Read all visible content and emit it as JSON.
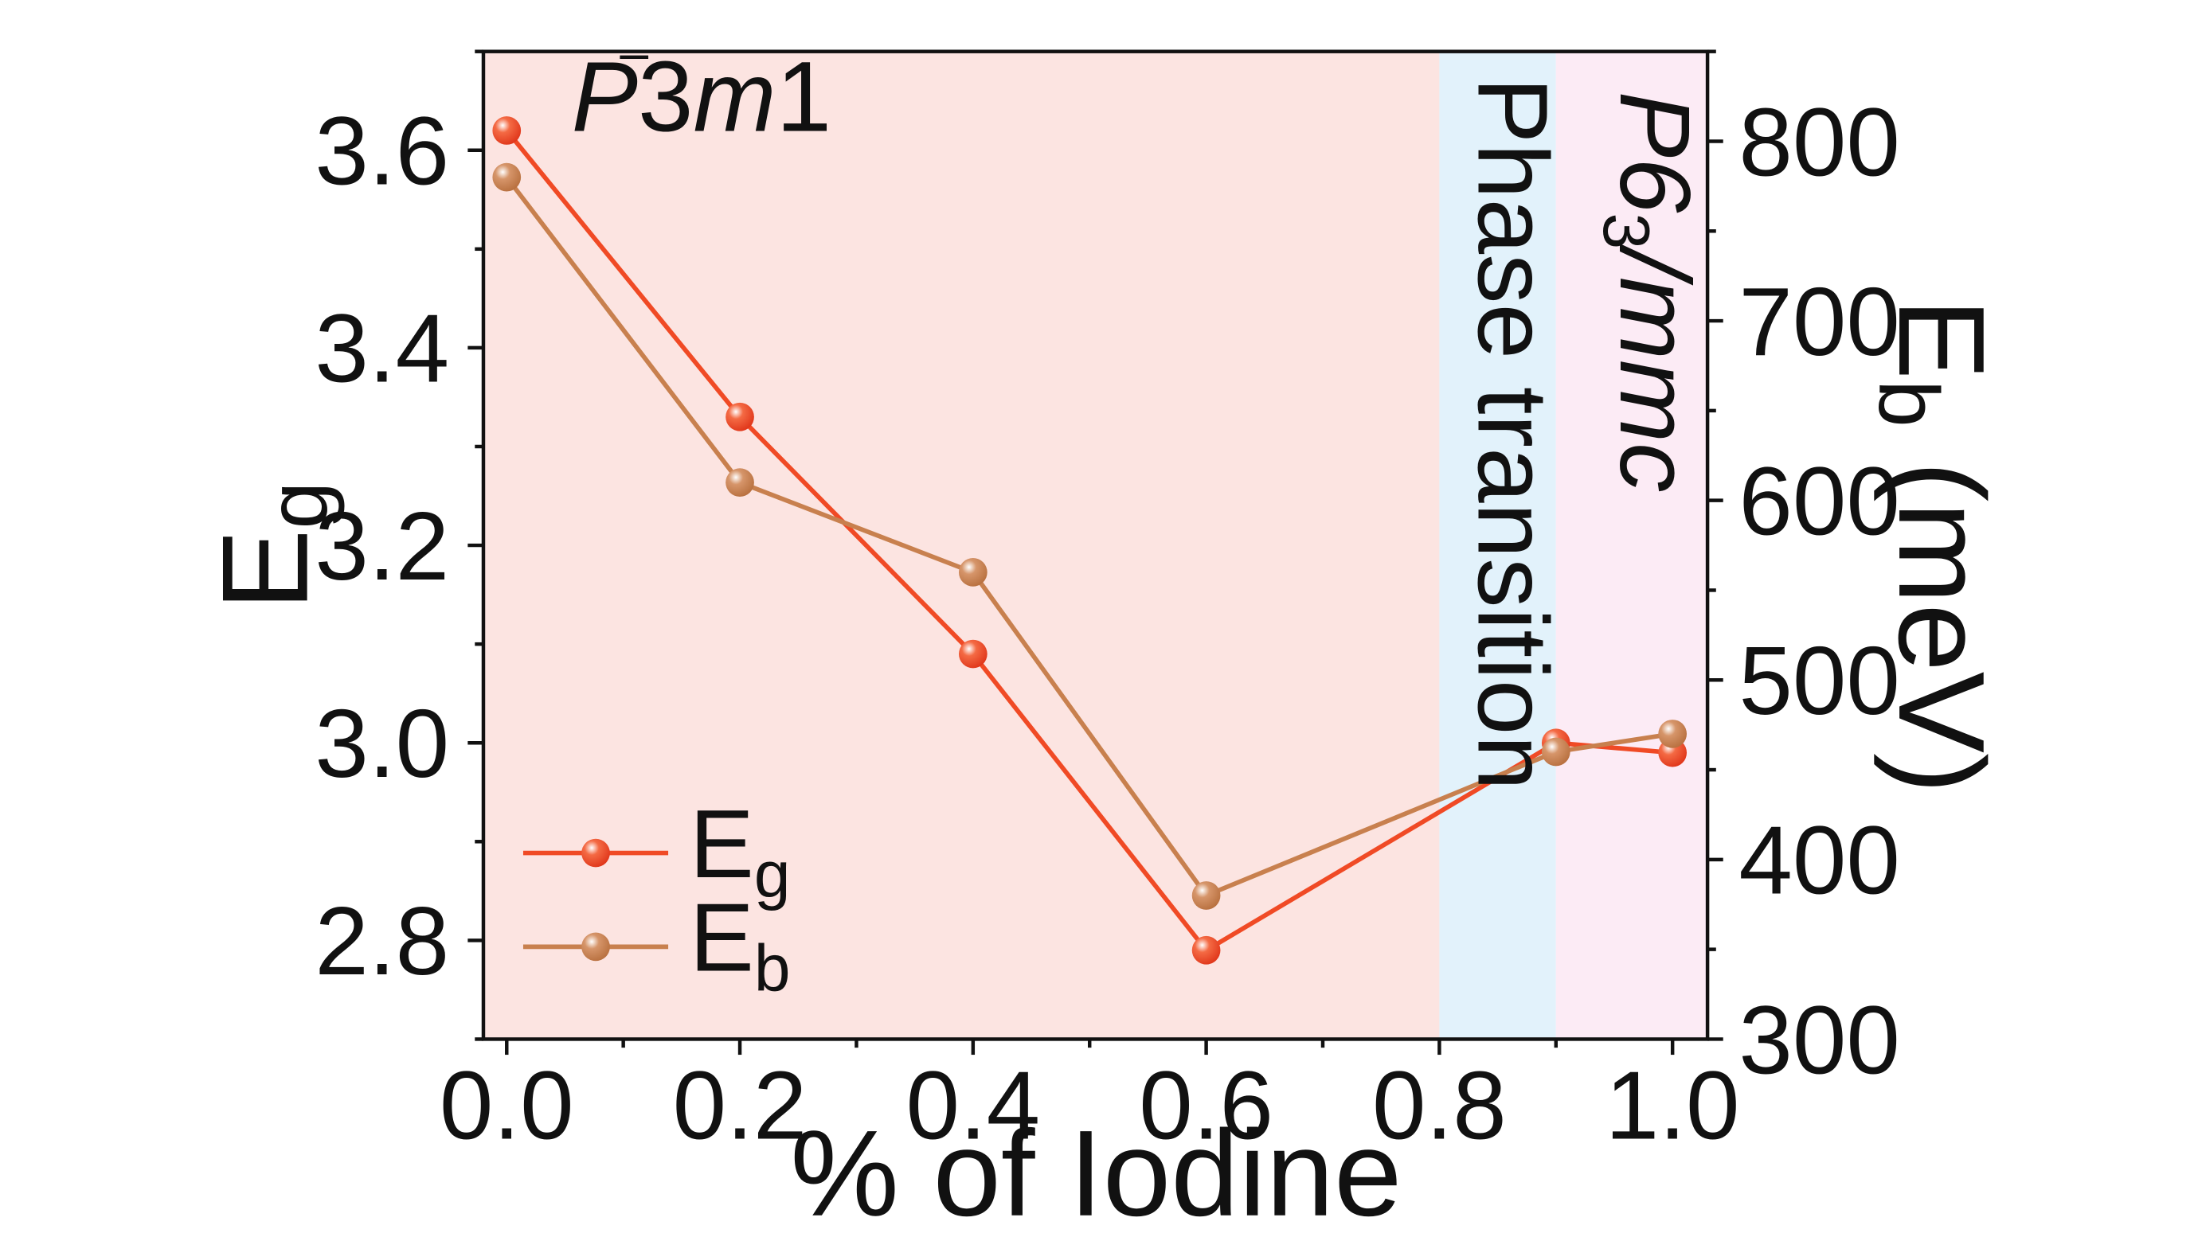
{
  "chart_data": {
    "type": "line",
    "x": [
      0.0,
      0.2,
      0.4,
      0.6,
      0.9,
      1.0
    ],
    "series": [
      {
        "name": "Eg",
        "axis": "left",
        "color": "#f04a25",
        "values": [
          3.62,
          3.33,
          3.09,
          2.79,
          3.0,
          2.99
        ]
      },
      {
        "name": "Eb",
        "axis": "right",
        "color": "#c8804e",
        "values": [
          780,
          610,
          560,
          380,
          460,
          470
        ]
      }
    ],
    "xlabel": "% of Iodine",
    "ylabel_left": {
      "main": "E",
      "sub": "g"
    },
    "ylabel_right": {
      "main": "E",
      "sub": "b",
      "suffix": " (meV)"
    },
    "xlim": [
      -0.02,
      1.03
    ],
    "ylim_left": [
      2.7,
      3.7
    ],
    "ylim_right": [
      300,
      850
    ],
    "xticks": [
      "0.0",
      "0.2",
      "0.4",
      "0.6",
      "0.8",
      "1.0"
    ],
    "yticks_left": [
      "2.8",
      "3.0",
      "3.2",
      "3.4",
      "3.6"
    ],
    "yticks_right": [
      "300",
      "400",
      "500",
      "600",
      "700",
      "800"
    ],
    "regions": [
      {
        "name": "P-3m1",
        "from": -0.02,
        "to": 0.8,
        "color": "#fce4e1"
      },
      {
        "name": "phase-transition",
        "from": 0.8,
        "to": 0.9,
        "color": "#e2f2fb"
      },
      {
        "name": "P63/mmc",
        "from": 0.9,
        "to": 1.03,
        "color": "#fcebf5"
      }
    ],
    "annotations": {
      "left_phase": {
        "p": "P",
        "num": "3",
        "m": "m",
        "end": "1"
      },
      "middle": "Phase transition",
      "right_phase": {
        "p": "P6",
        "sub": "3",
        "rest": "/mmc"
      }
    },
    "legend": {
      "position": "bottom-left",
      "entries": [
        {
          "main": "E",
          "sub": "g",
          "series": "Eg"
        },
        {
          "main": "E",
          "sub": "b",
          "series": "Eb"
        }
      ]
    },
    "grid": false
  }
}
